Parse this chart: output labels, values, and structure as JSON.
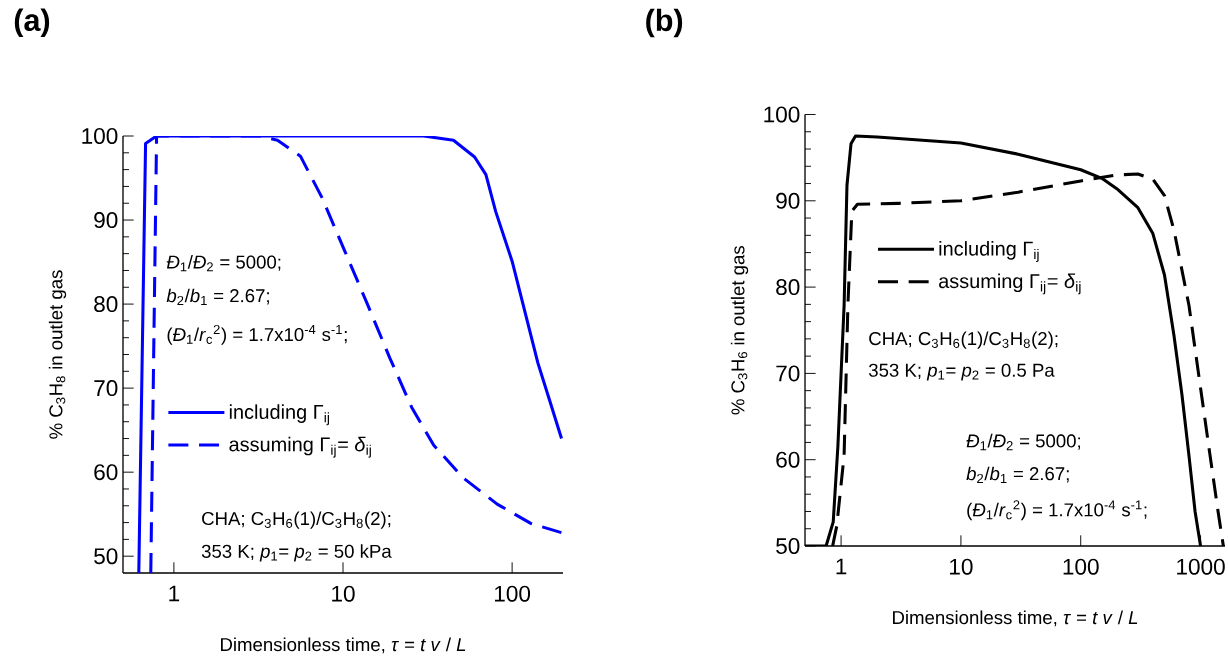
{
  "chart_data": [
    {
      "type": "line",
      "title": "**(a)**",
      "xlabel": "Dimensionless time, *τ* = *t v* / *L*",
      "ylabel": "% C$_{3}$H$_{8}$ in outlet gas",
      "log": "x",
      "xlim": [
        0.5,
        200
      ],
      "ylim": [
        48,
        100
      ],
      "xticks": [
        1,
        10,
        100
      ],
      "yticks": [
        50,
        60,
        70,
        80,
        90,
        100
      ],
      "legend": "left",
      "annotations": [
        "*Đ*$_{1}$/*Đ*$_{2}$ = 5000;",
        "*b*$_{2}$/*b*$_{1}$ = 2.67;",
        "(*Đ*$_{1}$/*r*$_{c}$$^{2}$) = 1.7x10$^{-4}$ s$^{-1}$;",
        "CHA; C$_{3}$H$_{6}$(1)/C$_{3}$H$_{8}$(2);",
        "353 K; *p*$_{1}$= *p*$_{2}$ = 50 kPa"
      ],
      "series": [
        {
          "name": "including Γ$_{ij}$",
          "color": "#0000ff",
          "line_style": "solid",
          "x": [
            0.62,
            0.68,
            0.79,
            3,
            30,
            45,
            60,
            70,
            80,
            100,
            142,
            170,
            196
          ],
          "values": [
            48,
            99.1,
            100,
            100,
            100,
            99.5,
            97.5,
            95.4,
            91,
            85.1,
            73,
            68,
            64
          ]
        },
        {
          "name": "assuming Γ$_{ij}$= *δ*$_{ij}$",
          "color": "#0000ff",
          "line_style": "dashed",
          "x": [
            0.73,
            0.79,
            3.2,
            4.1,
            5.6,
            7.5,
            10.2,
            13.8,
            18.9,
            25.5,
            34.4,
            51.5,
            81.6,
            129,
            196
          ],
          "values": [
            48,
            100,
            100,
            99.5,
            97.6,
            92.7,
            86.4,
            80.2,
            73.6,
            67.7,
            63.2,
            59.3,
            56.2,
            53.9,
            52.8
          ]
        }
      ]
    },
    {
      "type": "line",
      "title": "**(b)**",
      "xlabel": "Dimensionless time, *τ* = *t v* / *L*",
      "ylabel": "% C$_{3}$H$_{6}$ in outlet gas",
      "log": "x",
      "xlim": [
        0.5,
        1600
      ],
      "ylim": [
        50,
        100
      ],
      "xticks": [
        1,
        10,
        100,
        1000
      ],
      "yticks": [
        50,
        60,
        70,
        80,
        90,
        100
      ],
      "legend": "top",
      "annotations": [
        "CHA; C$_{3}$H$_{6}$(1)/C$_{3}$H$_{8}$(2);",
        "353 K; *p*$_{1}$= *p*$_{2}$ = 0.5 Pa",
        "*Đ*$_{1}$/*Đ*$_{2}$ = 5000;",
        "*b*$_{2}$/*b*$_{1}$ = 2.67;",
        "(*Đ*$_{1}$/*r*$_{c}$$^{2}$) = 1.7x10$^{-4}$ s$^{-1}$;"
      ],
      "series": [
        {
          "name": "including Γ$_{ij}$",
          "color": "#000000",
          "line_style": "solid",
          "x": [
            0.5,
            0.75,
            0.86,
            0.94,
            1.06,
            1.12,
            1.21,
            1.32,
            2,
            10,
            30,
            100,
            150,
            200,
            300,
            400,
            500,
            600,
            700,
            800,
            900,
            1000
          ],
          "values": [
            50,
            50,
            52.8,
            61.5,
            77.9,
            91.8,
            96.6,
            97.5,
            97.4,
            96.7,
            95.4,
            93.6,
            92.6,
            91.4,
            89.2,
            86.2,
            81.4,
            74.4,
            67.5,
            60.5,
            54,
            50
          ]
        },
        {
          "name": "assuming Γ$_{ij}$= *δ*$_{ij}$",
          "color": "#000000",
          "line_style": "dashed",
          "x": [
            0.85,
            0.92,
            1.06,
            1.14,
            1.23,
            1.37,
            3,
            10,
            30,
            100,
            200,
            300,
            400,
            500,
            600,
            800,
            1000,
            1200,
            1400,
            1550
          ],
          "values": [
            50,
            52.3,
            60.5,
            77.9,
            88.8,
            89.6,
            89.7,
            90.0,
            91.0,
            92.3,
            93.0,
            93.1,
            92.5,
            90.6,
            86.6,
            77.9,
            68.3,
            60.5,
            54,
            50
          ]
        }
      ]
    }
  ]
}
